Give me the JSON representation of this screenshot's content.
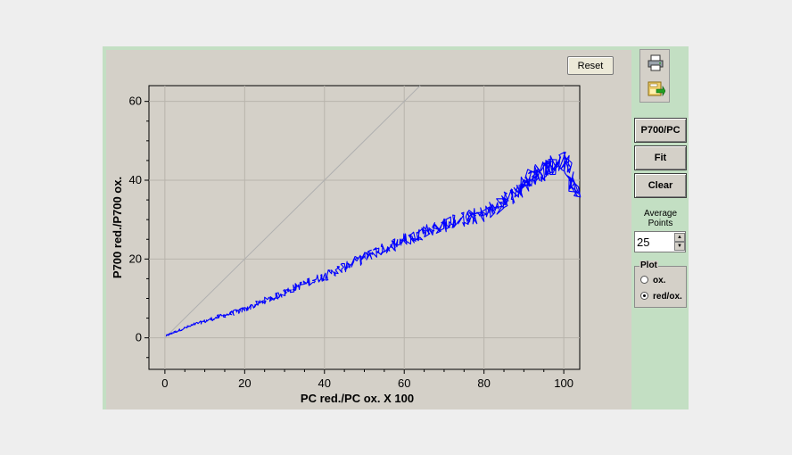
{
  "plot": {
    "reset_label": "Reset"
  },
  "toolbar": {
    "icons": [
      "printer-icon",
      "export-icon"
    ]
  },
  "sidebar": {
    "p700pc_label": "P700/PC",
    "fit_label": "Fit",
    "clear_label": "Clear",
    "average_label_line1": "Average",
    "average_label_line2": "Points",
    "average_value": "25",
    "plot_group_title": "Plot",
    "plot_options": [
      {
        "label": "ox.",
        "selected": false
      },
      {
        "label": "red/ox.",
        "selected": true
      }
    ]
  },
  "chart_data": {
    "type": "line",
    "xlabel": "PC red./PC ox. X 100",
    "ylabel": "P700 red./P700 ox.",
    "xlim": [
      -4,
      104
    ],
    "ylim": [
      -8,
      64
    ],
    "xticks": [
      0,
      20,
      40,
      60,
      80,
      100
    ],
    "yticks": [
      0,
      20,
      40,
      60
    ],
    "grid": true,
    "reference_line": {
      "x": [
        0,
        64
      ],
      "y": [
        0,
        64
      ],
      "color": "#b0b0b0"
    },
    "series": [
      {
        "color": "#0000ff",
        "x": [
          0.3,
          2,
          5,
          8,
          11,
          14,
          17,
          20,
          23,
          26,
          29,
          32,
          35,
          38,
          41,
          44,
          47,
          50,
          53,
          56,
          59,
          62,
          65,
          68,
          71,
          74,
          77,
          80,
          83,
          86,
          88,
          90,
          92,
          94,
          96,
          98,
          100,
          102,
          103
        ],
        "y": [
          0.5,
          1.3,
          2.5,
          3.6,
          4.5,
          5.5,
          6.3,
          7.2,
          8.5,
          9.8,
          11,
          12.5,
          13.8,
          15,
          16,
          17.5,
          19,
          20.5,
          22,
          23,
          24.5,
          25.5,
          27,
          28,
          29,
          30,
          30.5,
          31.5,
          33,
          35,
          37,
          39,
          41,
          42,
          43.5,
          44,
          45,
          40,
          37
        ]
      }
    ]
  }
}
